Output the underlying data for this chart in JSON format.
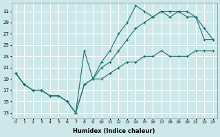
{
  "xlabel": "Humidex (Indice chaleur)",
  "bg_color": "#cce8e8",
  "grid_color": "#ffffff",
  "line_color": "#1a7070",
  "xlim": [
    -0.5,
    23.5
  ],
  "ylim": [
    12,
    32.5
  ],
  "xticks": [
    0,
    1,
    2,
    3,
    4,
    5,
    6,
    7,
    8,
    9,
    10,
    11,
    12,
    13,
    14,
    15,
    16,
    17,
    18,
    19,
    20,
    21,
    22,
    23
  ],
  "yticks": [
    13,
    15,
    17,
    19,
    21,
    23,
    25,
    27,
    29,
    31
  ],
  "line1_x": [
    0,
    1,
    2,
    3,
    4,
    5,
    6,
    7,
    8,
    9,
    10,
    11,
    12,
    13,
    14,
    15,
    16,
    17,
    18,
    19,
    20,
    21,
    22,
    23
  ],
  "line1_y": [
    20,
    18,
    17,
    17,
    16,
    16,
    15,
    13,
    18,
    19,
    19,
    20,
    21,
    22,
    22,
    23,
    23,
    24,
    23,
    23,
    23,
    24,
    24,
    24
  ],
  "line2_x": [
    0,
    1,
    2,
    3,
    4,
    5,
    6,
    7,
    8,
    9,
    10,
    11,
    12,
    13,
    14,
    15,
    16,
    17,
    18,
    19,
    20,
    21,
    22,
    23
  ],
  "line2_y": [
    20,
    18,
    17,
    17,
    16,
    16,
    15,
    13,
    18,
    19,
    21,
    22,
    24,
    26,
    28,
    29,
    30,
    31,
    30,
    31,
    31,
    30,
    28,
    26
  ],
  "line3_x": [
    0,
    1,
    2,
    3,
    4,
    5,
    6,
    7,
    8,
    9,
    10,
    11,
    12,
    13,
    14,
    15,
    16,
    17,
    18,
    19,
    20,
    21,
    22,
    23
  ],
  "line3_y": [
    20,
    18,
    17,
    17,
    16,
    16,
    15,
    13,
    24,
    19,
    22,
    24,
    27,
    29,
    32,
    31,
    30,
    31,
    31,
    31,
    30,
    30,
    26,
    26
  ]
}
